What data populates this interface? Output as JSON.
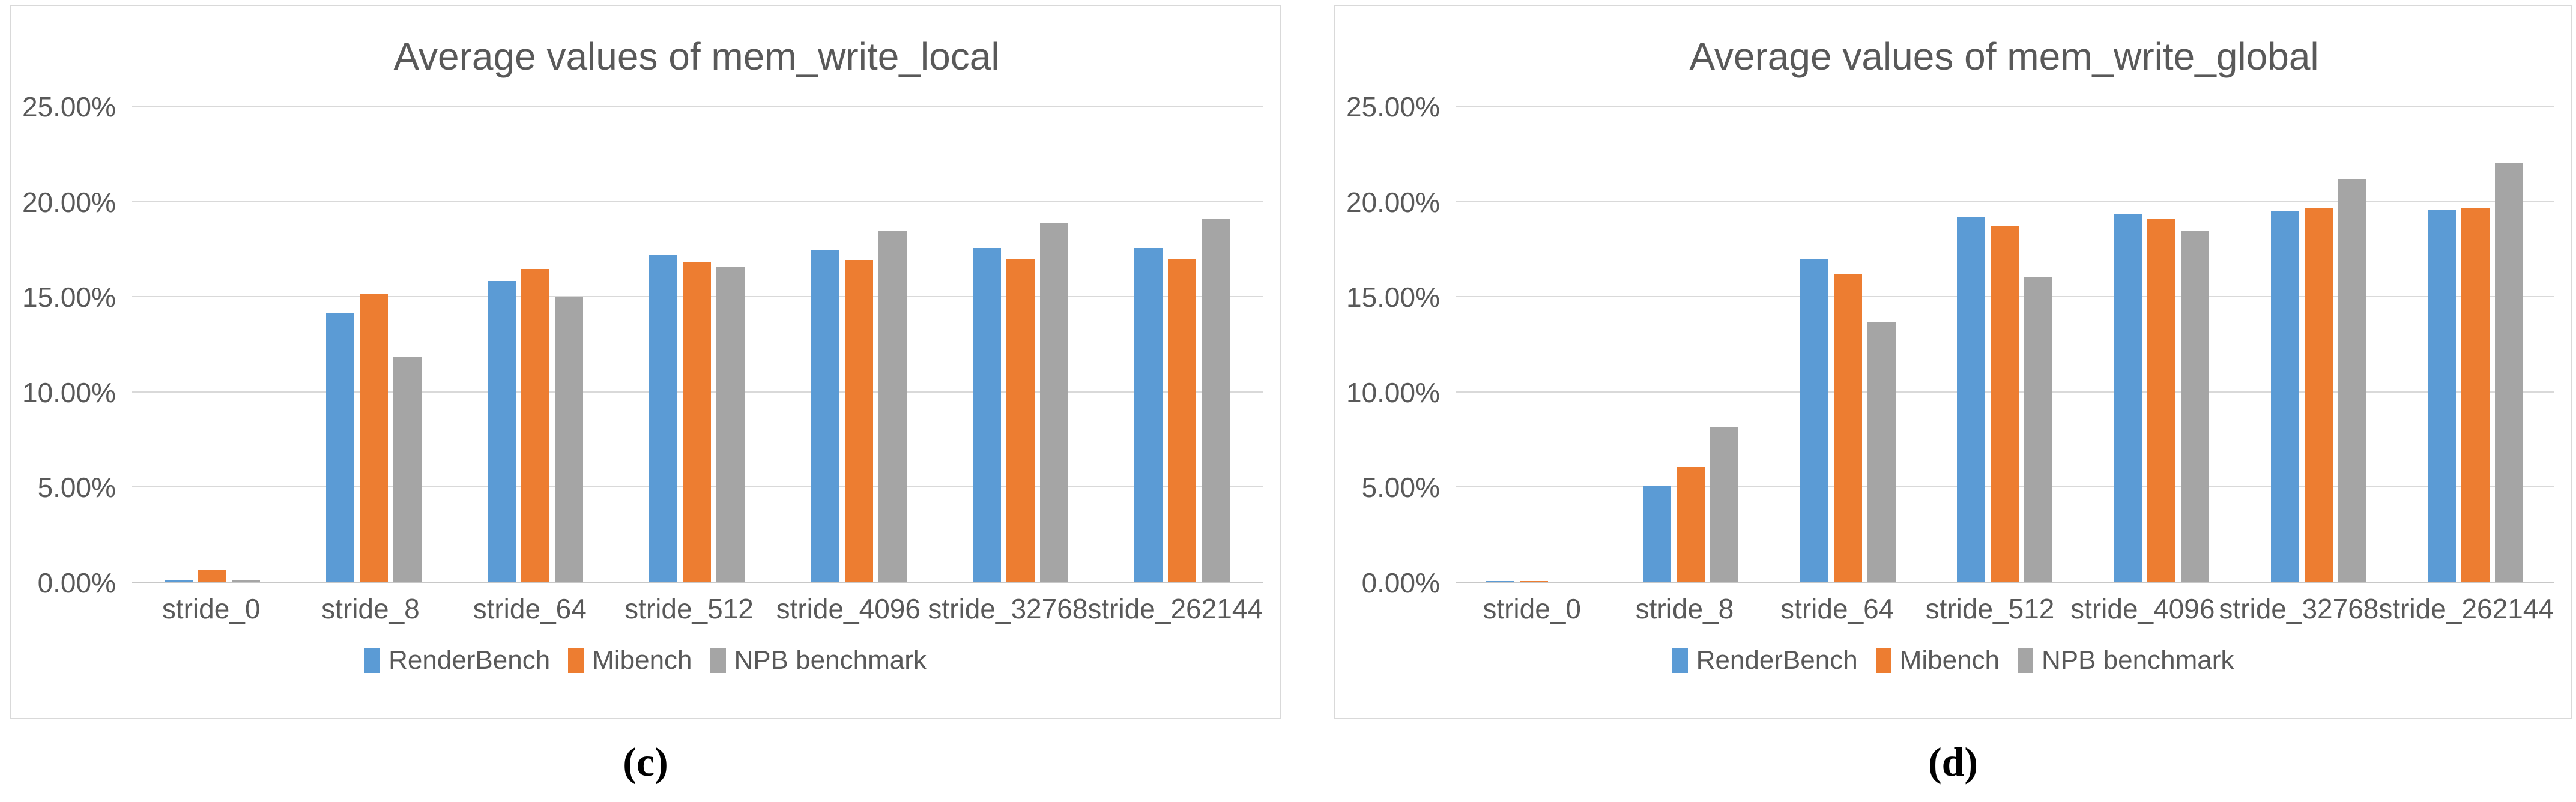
{
  "colors": {
    "series_blue": "#5B9BD5",
    "series_orange": "#ED7D31",
    "series_gray": "#A5A5A5",
    "gridline": "#D9D9D9",
    "axis_line": "#C8C8C8",
    "text": "#595959",
    "panel_border": "#D9D9D9"
  },
  "chart_data": [
    {
      "type": "bar",
      "title": "Average values of mem_write_local",
      "caption": "(c)",
      "categories": [
        "stride_0",
        "stride_8",
        "stride_64",
        "stride_512",
        "stride_4096",
        "stride_32768",
        "stride_262144"
      ],
      "series": [
        {
          "name": "RenderBench",
          "color": "#5B9BD5",
          "values": [
            0.15,
            14.2,
            15.85,
            17.25,
            17.5,
            17.6,
            17.6
          ]
        },
        {
          "name": "Mibench",
          "color": "#ED7D31",
          "values": [
            0.65,
            15.2,
            16.5,
            16.85,
            16.95,
            17.0,
            17.0
          ]
        },
        {
          "name": "NPB benchmark",
          "color": "#A5A5A5",
          "values": [
            0.15,
            11.9,
            15.0,
            16.6,
            18.5,
            18.9,
            19.15
          ]
        }
      ],
      "ylim": [
        0,
        25
      ],
      "ytick_step": 5,
      "ytick_labels": [
        "0.00%",
        "5.00%",
        "10.00%",
        "15.00%",
        "20.00%",
        "25.00%"
      ],
      "grid": true,
      "legend_position": "bottom"
    },
    {
      "type": "bar",
      "title": "Average values of mem_write_global",
      "caption": "(d)",
      "categories": [
        "stride_0",
        "stride_8",
        "stride_64",
        "stride_512",
        "stride_4096",
        "stride_32768",
        "stride_262144"
      ],
      "series": [
        {
          "name": "RenderBench",
          "color": "#5B9BD5",
          "values": [
            0.1,
            5.1,
            17.0,
            19.2,
            19.35,
            19.5,
            19.6
          ]
        },
        {
          "name": "Mibench",
          "color": "#ED7D31",
          "values": [
            0.1,
            6.1,
            16.2,
            18.75,
            19.1,
            19.7,
            19.7
          ]
        },
        {
          "name": "NPB benchmark",
          "color": "#A5A5A5",
          "values": [
            0.05,
            8.2,
            13.7,
            16.05,
            18.5,
            21.2,
            22.05
          ]
        }
      ],
      "ylim": [
        0,
        25
      ],
      "ytick_step": 5,
      "ytick_labels": [
        "0.00%",
        "5.00%",
        "10.00%",
        "15.00%",
        "20.00%",
        "25.00%"
      ],
      "grid": true,
      "legend_position": "bottom"
    }
  ]
}
